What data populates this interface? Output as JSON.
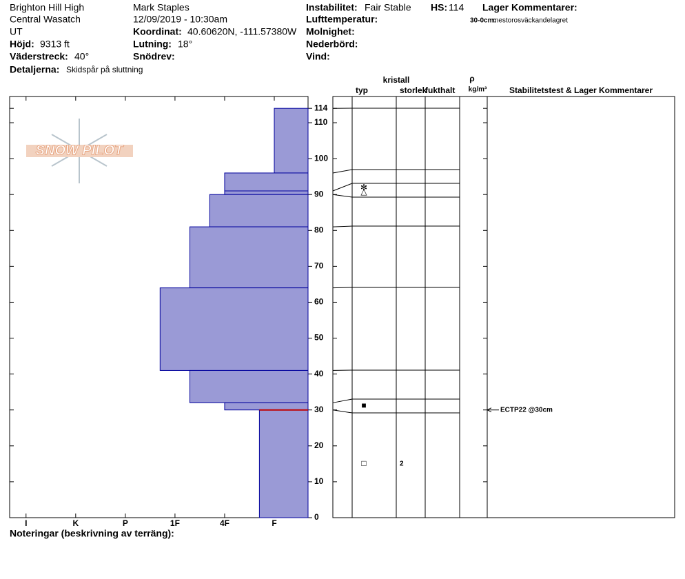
{
  "header": {
    "location": "Brighton Hill High",
    "range": "Central Wasatch",
    "state": "UT",
    "elevation_label": "Höjd:",
    "elevation": "9313 ft",
    "aspect_label": "Väderstreck:",
    "aspect": "40°",
    "details_label": "Detaljerna:",
    "details": "Skidspår på sluttning",
    "observer": "Mark Staples",
    "datetime": "12/09/2019 - 10:30am",
    "coord_label": "Koordinat:",
    "coord": "40.60620N, -111.57380W",
    "slope_label": "Lutning:",
    "slope": "18°",
    "wind_loading_label": "Snödrev:",
    "instability_label": "Instabilitet:",
    "instability": "Fair Stable",
    "hs_label": "HS:",
    "hs": 114,
    "air_temp_label": "Lufttemperatur:",
    "sky_label": "Molnighet:",
    "precip_label": "Nederbörd:",
    "wind_label": "Vind:",
    "layer_comments_label": "Lager Kommentarer:",
    "layer_comment_range": "30-0cm:",
    "layer_comment": "mestorosväckandelagret"
  },
  "logo": "SNOW PILOT",
  "chart_data": {
    "type": "snow-profile",
    "color": "#9a9ad6",
    "edge_color": "#00009c",
    "xlim": [
      6.33,
      0.32
    ],
    "xticks": [
      {
        "value": 6,
        "label": "I"
      },
      {
        "value": 5,
        "label": "K"
      },
      {
        "value": 4,
        "label": "P"
      },
      {
        "value": 3,
        "label": "1F"
      },
      {
        "value": 2,
        "label": "4F"
      },
      {
        "value": 1,
        "label": "F"
      }
    ],
    "ylim": [
      0,
      117.3
    ],
    "yticks": [
      0,
      10,
      20,
      30,
      40,
      50,
      60,
      70,
      80,
      90,
      100,
      110,
      114
    ],
    "layers": [
      {
        "top": 114,
        "bottom": 96,
        "hardness": 1.0
      },
      {
        "top": 96,
        "bottom": 91,
        "hardness": 2.0
      },
      {
        "top": 91,
        "bottom": 90,
        "hardness": 2.0,
        "grain": "✻",
        "grain2": "△"
      },
      {
        "top": 90,
        "bottom": 81,
        "hardness": 2.3
      },
      {
        "top": 81,
        "bottom": 64,
        "hardness": 2.7
      },
      {
        "top": 64,
        "bottom": 41,
        "hardness": 3.3
      },
      {
        "top": 41,
        "bottom": 32,
        "hardness": 2.7
      },
      {
        "top": 32,
        "bottom": 30,
        "hardness": 2.0,
        "grain": "■"
      },
      {
        "top": 30,
        "bottom": 0,
        "hardness": 1.3,
        "grain": "□",
        "size": 2
      }
    ],
    "columns": {
      "type": "typ",
      "crystal": "kristall",
      "size": "storlek",
      "moisture": "fukthalt",
      "rho": "ρ",
      "density_unit": "kg/m³",
      "comments": "Stabilitetstest & Lager Kommentarer"
    },
    "tests": [
      {
        "depth": 30,
        "label": "ECTP22 @30cm"
      }
    ],
    "notes_label": "Noteringar (beskrivning av terräng):"
  }
}
